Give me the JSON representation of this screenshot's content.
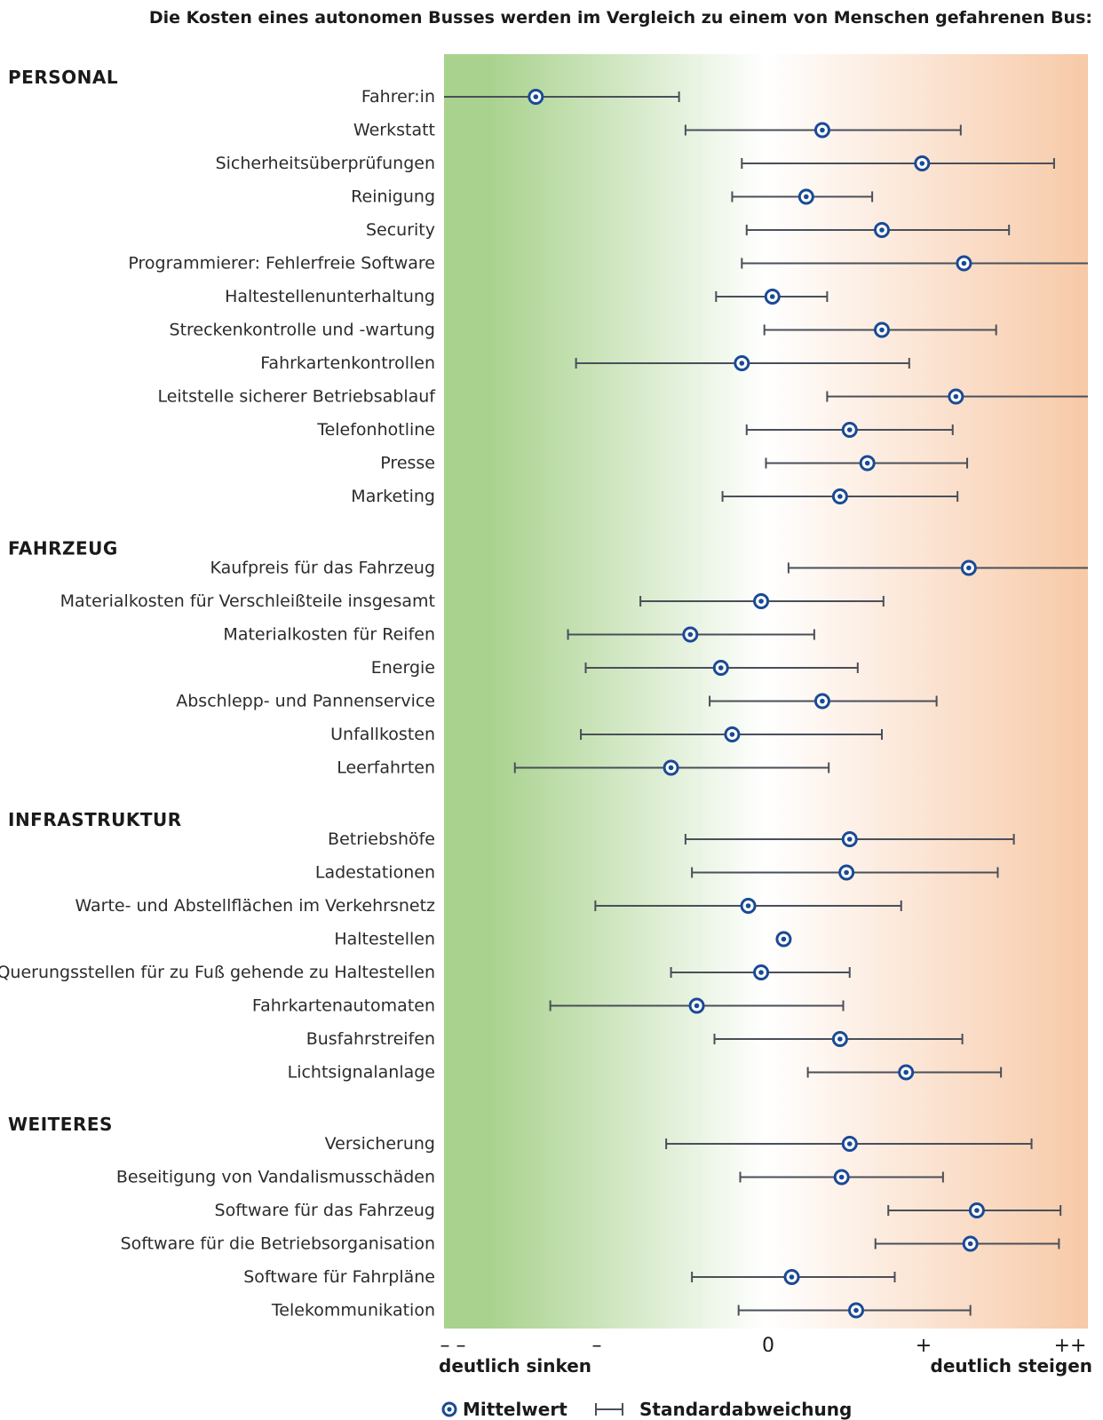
{
  "chart_data": {
    "type": "scatter",
    "title": "Die Kosten eines autonomen Busses werden im Vergleich zu einem von Menschen gefahrenen Bus:",
    "x_ticks": [
      "– –",
      "–",
      "0",
      "+",
      "++"
    ],
    "x_range": [
      -2,
      2
    ],
    "x_end_labels": {
      "left": "deutlich sinken",
      "right": "deutlich steigen"
    },
    "legend": {
      "mean": "Mittelwert",
      "sd": "Standardabweichung"
    },
    "colors": {
      "marker": "#1a4a95",
      "errbar": "#4a4f59",
      "bg_left": "#a9d28e",
      "bg_mid": "#ffffff",
      "bg_right": "#f7c9a7"
    },
    "groups": [
      {
        "name": "PERSONAL",
        "items": [
          {
            "label": "Fahrer:in",
            "mean": -1.43,
            "low": -2.0,
            "high": -0.54
          },
          {
            "label": "Werkstatt",
            "mean": 0.35,
            "low": -0.5,
            "high": 1.21
          },
          {
            "label": "Sicherheitsüberprüfungen",
            "mean": 0.97,
            "low": -0.15,
            "high": 1.79
          },
          {
            "label": "Reinigung",
            "mean": 0.25,
            "low": -0.21,
            "high": 0.66
          },
          {
            "label": "Security",
            "mean": 0.72,
            "low": -0.12,
            "high": 1.51
          },
          {
            "label": "Programmierer: Fehlerfreie Software",
            "mean": 1.23,
            "low": -0.15,
            "high": 2.0
          },
          {
            "label": "Haltestellenunterhaltung",
            "mean": 0.04,
            "low": -0.31,
            "high": 0.38
          },
          {
            "label": "Streckenkontrolle und -wartung",
            "mean": 0.72,
            "low": -0.01,
            "high": 1.43
          },
          {
            "label": "Fahrkartenkontrollen",
            "mean": -0.15,
            "low": -1.18,
            "high": 0.89
          },
          {
            "label": "Leitstelle sicherer Betriebsablauf",
            "mean": 1.18,
            "low": 0.38,
            "high": 2.0
          },
          {
            "label": "Telefonhotline",
            "mean": 0.52,
            "low": -0.12,
            "high": 1.16
          },
          {
            "label": "Presse",
            "mean": 0.63,
            "low": 0.0,
            "high": 1.25
          },
          {
            "label": "Marketing",
            "mean": 0.46,
            "low": -0.27,
            "high": 1.19
          }
        ]
      },
      {
        "name": "FAHRZEUG",
        "items": [
          {
            "label": "Kaufpreis für das Fahrzeug",
            "mean": 1.26,
            "low": 0.14,
            "high": 2.0
          },
          {
            "label": "Materialkosten für Verschleißteile insgesamt",
            "mean": -0.03,
            "low": -0.78,
            "high": 0.73
          },
          {
            "label": "Materialkosten für Reifen",
            "mean": -0.47,
            "low": -1.23,
            "high": 0.3
          },
          {
            "label": "Energie",
            "mean": -0.28,
            "low": -1.12,
            "high": 0.57
          },
          {
            "label": "Abschlepp- und Pannenservice",
            "mean": 0.35,
            "low": -0.35,
            "high": 1.06
          },
          {
            "label": "Unfallkosten",
            "mean": -0.21,
            "low": -1.15,
            "high": 0.72
          },
          {
            "label": "Leerfahrten",
            "mean": -0.59,
            "low": -1.56,
            "high": 0.39
          }
        ]
      },
      {
        "name": "INFRASTRUKTUR",
        "items": [
          {
            "label": "Betriebshöfe",
            "mean": 0.52,
            "low": -0.5,
            "high": 1.54
          },
          {
            "label": "Ladestationen",
            "mean": 0.5,
            "low": -0.46,
            "high": 1.44
          },
          {
            "label": "Warte- und Abstellflächen im Verkehrsnetz",
            "mean": -0.11,
            "low": -1.06,
            "high": 0.84
          },
          {
            "label": "Haltestellen",
            "mean": 0.11,
            "low": 0.11,
            "high": 0.11
          },
          {
            "label": "Querungsstellen für zu Fuß gehende zu Haltestellen",
            "mean": -0.03,
            "low": -0.59,
            "high": 0.52
          },
          {
            "label": "Fahrkartenautomaten",
            "mean": -0.43,
            "low": -1.34,
            "high": 0.48
          },
          {
            "label": "Busfahrstreifen",
            "mean": 0.46,
            "low": -0.32,
            "high": 1.22
          },
          {
            "label": "Lichtsignalanlage",
            "mean": 0.87,
            "low": 0.26,
            "high": 1.46
          }
        ]
      },
      {
        "name": "WEITERES",
        "items": [
          {
            "label": "Versicherung",
            "mean": 0.52,
            "low": -0.62,
            "high": 1.65
          },
          {
            "label": "Beseitigung von Vandalismusschäden",
            "mean": 0.47,
            "low": -0.16,
            "high": 1.1
          },
          {
            "label": "Software für das Fahrzeug",
            "mean": 1.31,
            "low": 0.76,
            "high": 1.83
          },
          {
            "label": "Software für die Betriebsorganisation",
            "mean": 1.27,
            "low": 0.68,
            "high": 1.82
          },
          {
            "label": "Software für Fahrpläne",
            "mean": 0.16,
            "low": -0.46,
            "high": 0.8
          },
          {
            "label": "Telekommunikation",
            "mean": 0.56,
            "low": -0.17,
            "high": 1.27
          }
        ]
      }
    ]
  }
}
